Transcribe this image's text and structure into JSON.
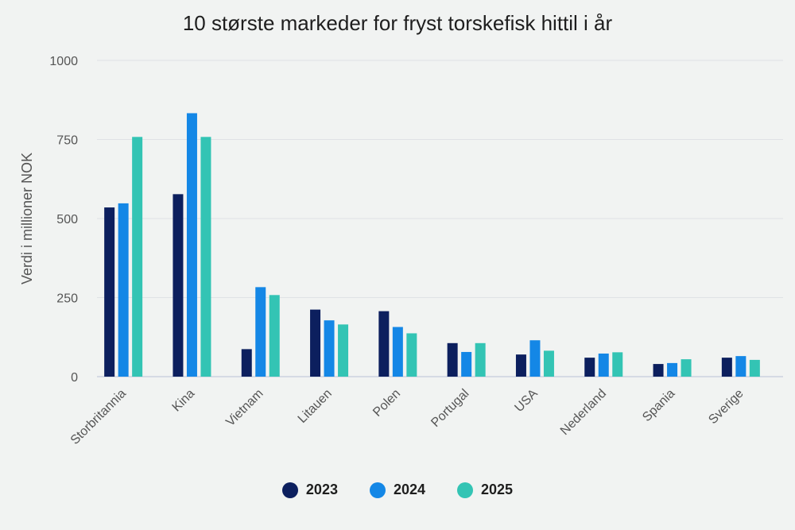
{
  "chart_data": {
    "type": "bar",
    "title": "10 største markeder for fryst torskefisk hittil i år",
    "xlabel": "",
    "ylabel": "Verdi i millioner NOK",
    "ylim": [
      0,
      1000
    ],
    "yticks": [
      0,
      250,
      500,
      750,
      1000
    ],
    "grid": true,
    "legend_position": "bottom",
    "categories": [
      "Storbritannia",
      "Kina",
      "Vietnam",
      "Litauen",
      "Polen",
      "Portugal",
      "USA",
      "Nederland",
      "Spania",
      "Sverige"
    ],
    "series": [
      {
        "name": "2023",
        "color": "#0c1f5e",
        "values": [
          535,
          577,
          87,
          212,
          207,
          106,
          70,
          60,
          40,
          60
        ]
      },
      {
        "name": "2024",
        "color": "#1487e6",
        "values": [
          548,
          833,
          283,
          178,
          157,
          78,
          115,
          73,
          43,
          65
        ]
      },
      {
        "name": "2025",
        "color": "#33c4b4",
        "values": [
          758,
          758,
          258,
          165,
          137,
          106,
          82,
          77,
          55,
          53
        ]
      }
    ]
  }
}
